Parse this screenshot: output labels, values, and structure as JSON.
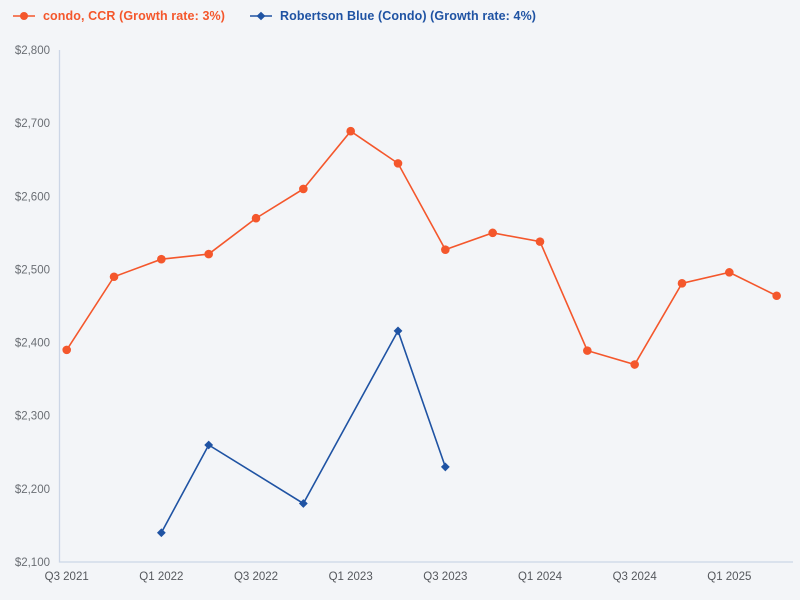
{
  "page": {
    "background": "#f3f5f8"
  },
  "legend": {
    "items": [
      {
        "label": "condo, CCR (Growth rate: 3%)",
        "color": "#f4572c",
        "marker": "circle"
      },
      {
        "label": "Robertson Blue (Condo) (Growth rate: 4%)",
        "color": "#1f53a3",
        "marker": "diamond"
      }
    ]
  },
  "chart_data": {
    "type": "line",
    "title": "",
    "xlabel": "",
    "ylabel": "",
    "grid": false,
    "legend_position": "top-left",
    "ylim": [
      2100,
      2800
    ],
    "categories": [
      "Q3 2021",
      "Q4 2021",
      "Q1 2022",
      "Q2 2022",
      "Q3 2022",
      "Q4 2022",
      "Q1 2023",
      "Q2 2023",
      "Q3 2023",
      "Q4 2023",
      "Q1 2024",
      "Q2 2024",
      "Q3 2024",
      "Q4 2024",
      "Q1 2025",
      "Q2 2025"
    ],
    "x_tick_labels": [
      "Q3 2021",
      "Q1 2022",
      "Q3 2022",
      "Q1 2023",
      "Q3 2023",
      "Q1 2024",
      "Q3 2024",
      "Q1 2025"
    ],
    "x_tick_every": 2,
    "y_ticks": [
      {
        "value": 2100,
        "label": "$2,100"
      },
      {
        "value": 2200,
        "label": "$2,200"
      },
      {
        "value": 2300,
        "label": "$2,300"
      },
      {
        "value": 2400,
        "label": "$2,400"
      },
      {
        "value": 2500,
        "label": "$2,500"
      },
      {
        "value": 2600,
        "label": "$2,600"
      },
      {
        "value": 2700,
        "label": "$2,700"
      },
      {
        "value": 2800,
        "label": "$2,800"
      }
    ],
    "series": [
      {
        "name": "condo, CCR (Growth rate: 3%)",
        "color": "#f4572c",
        "marker": "circle",
        "values": [
          2390,
          2490,
          2514,
          2521,
          2570,
          2610,
          2689,
          2645,
          2527,
          2550,
          2538,
          2389,
          2370,
          2481,
          2496,
          2464
        ]
      },
      {
        "name": "Robertson Blue (Condo) (Growth rate: 4%)",
        "color": "#1f53a3",
        "marker": "diamond",
        "values": [
          null,
          null,
          2140,
          2260,
          null,
          2180,
          null,
          2416,
          2230,
          null,
          null,
          null,
          null,
          null,
          null,
          null
        ]
      }
    ],
    "axis_color": "#ccd6e6",
    "y_label_color": "#6a6e74",
    "x_label_color": "#55585d"
  }
}
